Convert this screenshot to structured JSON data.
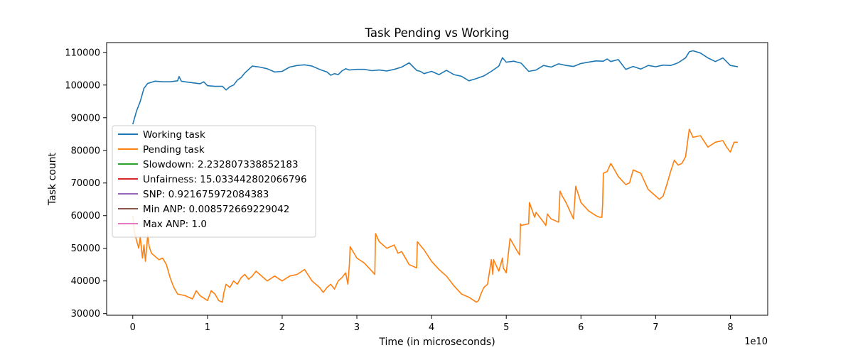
{
  "chart_data": {
    "type": "line",
    "title": "Task Pending vs Working",
    "xlabel": "Time (in microseconds)",
    "ylabel": "Task count",
    "x_multiplier_label": "1e10",
    "xlim": [
      -0.35,
      8.5
    ],
    "ylim": [
      29500,
      113000
    ],
    "x_ticks": [
      0,
      1,
      2,
      3,
      4,
      5,
      6,
      7,
      8
    ],
    "x_tick_labels": [
      "0",
      "1",
      "2",
      "3",
      "4",
      "5",
      "6",
      "7",
      "8"
    ],
    "y_ticks": [
      30000,
      40000,
      50000,
      60000,
      70000,
      80000,
      90000,
      100000,
      110000
    ],
    "y_tick_labels": [
      "30000",
      "40000",
      "50000",
      "60000",
      "70000",
      "80000",
      "90000",
      "100000",
      "110000"
    ],
    "grid": false,
    "legend_position": "center-left",
    "series": [
      {
        "name": "Working task",
        "color": "#1f77b4",
        "x": [
          0,
          0.05,
          0.1,
          0.15,
          0.2,
          0.3,
          0.4,
          0.5,
          0.6,
          0.62,
          0.65,
          0.7,
          0.8,
          0.9,
          0.95,
          1.0,
          1.1,
          1.2,
          1.25,
          1.3,
          1.35,
          1.4,
          1.45,
          1.5,
          1.6,
          1.7,
          1.8,
          1.9,
          2.0,
          2.1,
          2.2,
          2.3,
          2.4,
          2.5,
          2.6,
          2.65,
          2.7,
          2.75,
          2.8,
          2.85,
          2.9,
          3.0,
          3.1,
          3.2,
          3.3,
          3.4,
          3.5,
          3.6,
          3.7,
          3.8,
          3.85,
          3.9,
          4.0,
          4.1,
          4.2,
          4.3,
          4.4,
          4.5,
          4.6,
          4.7,
          4.8,
          4.9,
          4.95,
          5.0,
          5.1,
          5.2,
          5.3,
          5.4,
          5.5,
          5.6,
          5.7,
          5.8,
          5.9,
          6.0,
          6.1,
          6.2,
          6.3,
          6.35,
          6.4,
          6.5,
          6.6,
          6.7,
          6.8,
          6.9,
          7.0,
          7.1,
          7.2,
          7.3,
          7.4,
          7.45,
          7.5,
          7.6,
          7.7,
          7.8,
          7.9,
          8.0,
          8.1
        ],
        "y": [
          88000,
          92000,
          95000,
          99000,
          100500,
          101200,
          101000,
          101000,
          101300,
          102600,
          101200,
          101000,
          100700,
          100400,
          101000,
          99800,
          99600,
          99600,
          98500,
          99500,
          100000,
          101500,
          102300,
          103700,
          105800,
          105500,
          105000,
          104000,
          104200,
          105500,
          106000,
          106200,
          105800,
          104800,
          104000,
          103000,
          103500,
          103200,
          104300,
          105000,
          104600,
          104800,
          104800,
          104400,
          104600,
          104300,
          104800,
          105500,
          106800,
          104500,
          104200,
          103500,
          104200,
          103200,
          104500,
          103200,
          102700,
          101300,
          102000,
          102800,
          104200,
          105800,
          108400,
          107000,
          107300,
          106700,
          104200,
          104600,
          106000,
          105500,
          106500,
          106000,
          105700,
          106600,
          107000,
          107400,
          107300,
          108000,
          107200,
          107800,
          104800,
          105700,
          104900,
          106000,
          105600,
          106100,
          106000,
          106800,
          108300,
          110200,
          110500,
          109800,
          108300,
          107200,
          108300,
          106000,
          105600
        ]
      },
      {
        "name": "Pending task",
        "color": "#ff7f0e",
        "x": [
          0,
          0.02,
          0.05,
          0.08,
          0.1,
          0.13,
          0.15,
          0.17,
          0.2,
          0.22,
          0.25,
          0.3,
          0.35,
          0.4,
          0.45,
          0.5,
          0.55,
          0.6,
          0.7,
          0.8,
          0.85,
          0.9,
          1.0,
          1.05,
          1.1,
          1.15,
          1.2,
          1.22,
          1.25,
          1.3,
          1.35,
          1.4,
          1.45,
          1.5,
          1.55,
          1.6,
          1.65,
          1.7,
          1.8,
          1.9,
          2.0,
          2.1,
          2.2,
          2.3,
          2.4,
          2.5,
          2.55,
          2.6,
          2.65,
          2.7,
          2.75,
          2.8,
          2.85,
          2.88,
          2.9,
          2.91,
          3.0,
          3.1,
          3.2,
          3.24,
          3.25,
          3.3,
          3.4,
          3.5,
          3.55,
          3.6,
          3.7,
          3.8,
          3.81,
          3.9,
          4.0,
          4.1,
          4.2,
          4.3,
          4.4,
          4.5,
          4.6,
          4.63,
          4.66,
          4.7,
          4.75,
          4.8,
          4.82,
          4.83,
          4.9,
          4.95,
          4.96,
          5.0,
          5.05,
          5.1,
          5.15,
          5.18,
          5.19,
          5.2,
          5.3,
          5.31,
          5.38,
          5.4,
          5.5,
          5.53,
          5.55,
          5.6,
          5.7,
          5.72,
          5.75,
          5.8,
          5.9,
          5.93,
          6.0,
          6.1,
          6.2,
          6.25,
          6.28,
          6.29,
          6.3,
          6.35,
          6.4,
          6.45,
          6.5,
          6.6,
          6.65,
          6.7,
          6.8,
          6.9,
          7.0,
          7.05,
          7.1,
          7.15,
          7.2,
          7.25,
          7.3,
          7.35,
          7.4,
          7.45,
          7.5,
          7.6,
          7.7,
          7.8,
          7.9,
          7.95,
          8.0,
          8.05,
          8.1
        ],
        "y": [
          60000,
          55000,
          52500,
          50000,
          53500,
          47000,
          51000,
          46000,
          54000,
          50500,
          48500,
          47500,
          46500,
          47000,
          45000,
          41000,
          38000,
          36000,
          35500,
          34500,
          37000,
          35500,
          34000,
          37000,
          36000,
          34000,
          33500,
          36500,
          39000,
          38000,
          40000,
          39000,
          41000,
          42000,
          40500,
          41500,
          43000,
          42000,
          40000,
          41500,
          40000,
          41500,
          42000,
          43500,
          40000,
          38000,
          36500,
          38000,
          39000,
          37500,
          40000,
          41000,
          42500,
          39000,
          45000,
          50500,
          47000,
          45500,
          43000,
          42000,
          54500,
          52000,
          50000,
          51000,
          48500,
          49000,
          45000,
          44000,
          52000,
          49500,
          46000,
          43500,
          41500,
          38500,
          36000,
          35000,
          33500,
          34000,
          36000,
          38000,
          39000,
          46500,
          42000,
          46500,
          43000,
          47000,
          44000,
          42500,
          53000,
          51000,
          49000,
          48000,
          57500,
          57000,
          57500,
          64000,
          59500,
          61000,
          58000,
          57000,
          60500,
          59000,
          58000,
          67500,
          66000,
          64000,
          59000,
          69000,
          64000,
          61500,
          60000,
          59500,
          59500,
          63500,
          73000,
          73500,
          76000,
          74000,
          72000,
          69500,
          70000,
          74000,
          73000,
          68000,
          66000,
          65000,
          66000,
          69500,
          73500,
          77000,
          75500,
          76000,
          78000,
          86500,
          84000,
          84500,
          81000,
          82500,
          83000,
          81000,
          79500,
          82500,
          82500
        ]
      },
      {
        "name": "Slowdown: 2.232807338852183",
        "color": "#2ca02c",
        "x": [],
        "y": []
      },
      {
        "name": "Unfairness: 15.033442802066796",
        "color": "#d62728",
        "x": [],
        "y": []
      },
      {
        "name": "SNP: 0.921675972084383",
        "color": "#9467bd",
        "x": [],
        "y": []
      },
      {
        "name": "Min ANP: 0.008572669229042",
        "color": "#8c564b",
        "x": [],
        "y": []
      },
      {
        "name": "Max ANP: 1.0",
        "color": "#e377c2",
        "x": [],
        "y": []
      }
    ]
  }
}
